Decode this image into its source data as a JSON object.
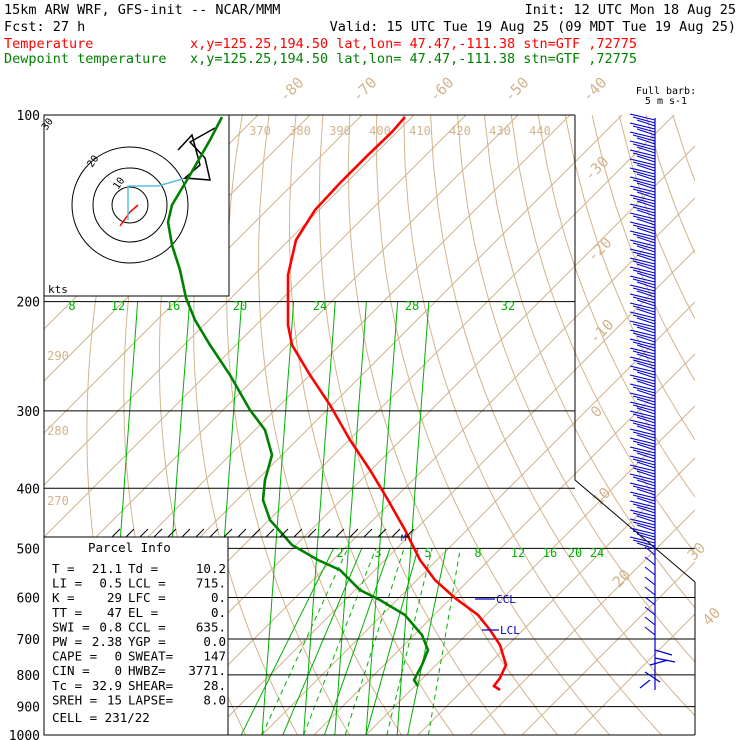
{
  "header": {
    "model": "15km ARW WRF, GFS-init   -- NCAR/MMM",
    "init": "Init: 12 UTC Mon 18 Aug 25",
    "fcst": "Fcst:   27 h",
    "valid": "Valid: 15 UTC Tue 19 Aug 25 (09 MDT Tue 19 Aug 25)",
    "temp_label": "Temperature",
    "temp_loc": "x,y=125.25,194.50   lat,lon= 47.47,-111.38  stn=GTF ,72775",
    "dew_label": "Dewpoint temperature",
    "dew_loc": "x,y=125.25,194.50   lat,lon= 47.47,-111.38  stn=GTF ,72775"
  },
  "colors": {
    "temperature": "#ff0000",
    "dewpoint": "#008000",
    "isotherm": "#d2b48c",
    "mixing_ratio": "#00b000",
    "wind": "#0000cc",
    "hodograph_line": "#5bc0de"
  },
  "barb_legend": {
    "line1": "Full barb:",
    "line2": "5 m s-1"
  },
  "hodograph": {
    "units": "kts",
    "rings": [
      "10",
      "20",
      "30"
    ]
  },
  "parcel_info": {
    "title": "Parcel Info",
    "rows": [
      [
        "T  =",
        "21.1",
        "Td =",
        "10.2"
      ],
      [
        "LI =",
        "0.5",
        "LCL =",
        "715."
      ],
      [
        "K  =",
        "29",
        "LFC =",
        "0."
      ],
      [
        "TT =",
        "47",
        "EL  =",
        "0."
      ],
      [
        "SWI =",
        "0.8",
        "CCL =",
        "635."
      ],
      [
        "PW =",
        "2.38",
        "YGP =",
        "0.0"
      ],
      [
        "CAPE =",
        "0",
        "SWEAT=",
        "147"
      ],
      [
        "CIN =",
        "0",
        "HWBZ=",
        "3771."
      ],
      [
        "Tc =",
        "32.9",
        "SHEAR=",
        "28."
      ],
      [
        "SREH =",
        "15",
        "LAPSE=",
        "8.0"
      ]
    ],
    "cell": "CELL = 231/22"
  },
  "annotations": {
    "ccl": "CCL",
    "lcl": "LCL",
    "m": "M"
  },
  "chart_data": {
    "type": "skew-t log-p sounding",
    "pressure_axis_hPa": [
      100,
      200,
      300,
      400,
      500,
      600,
      700,
      800,
      900,
      1000
    ],
    "pressure_tick_labels": [
      "100",
      "200",
      "300",
      "400",
      "500",
      "600",
      "700",
      "800",
      "900",
      "1000"
    ],
    "isotherm_labels_C": [
      "-80",
      "-70",
      "-60",
      "-50",
      "-40",
      "-30",
      "-20",
      "-10",
      "0",
      "10",
      "20",
      "30",
      "40"
    ],
    "theta_labels_K": [
      "370",
      "380",
      "390",
      "400",
      "410",
      "420",
      "430",
      "440",
      "290",
      "280",
      "270"
    ],
    "mixing_ratio_upper_labels": [
      "8",
      "12",
      "16",
      "20",
      "24",
      "28",
      "32"
    ],
    "mixing_ratio_lower_labels": [
      "2",
      "3",
      "4",
      "5",
      "6",
      "8",
      "12",
      "16",
      "20",
      "24"
    ],
    "series": [
      {
        "name": "Temperature",
        "points": [
          [
            100,
            -42
          ],
          [
            130,
            -47
          ],
          [
            170,
            -55
          ],
          [
            200,
            -58
          ],
          [
            230,
            -59
          ],
          [
            270,
            -54
          ],
          [
            320,
            -47
          ],
          [
            380,
            -37
          ],
          [
            450,
            -28
          ],
          [
            500,
            -21
          ],
          [
            550,
            -14
          ],
          [
            600,
            -7
          ],
          [
            650,
            0
          ],
          [
            700,
            7
          ],
          [
            750,
            12
          ],
          [
            800,
            15
          ],
          [
            850,
            15
          ],
          [
            890,
            14
          ],
          [
            900,
            14
          ]
        ]
      },
      {
        "name": "Dewpoint temperature",
        "points": [
          [
            100,
            -60
          ],
          [
            130,
            -64
          ],
          [
            150,
            -67
          ],
          [
            170,
            -68
          ],
          [
            200,
            -71
          ],
          [
            230,
            -67
          ],
          [
            270,
            -62
          ],
          [
            320,
            -54
          ],
          [
            380,
            -52
          ],
          [
            420,
            -54
          ],
          [
            460,
            -54
          ],
          [
            500,
            -48
          ],
          [
            560,
            -33
          ],
          [
            600,
            -22
          ],
          [
            650,
            -12
          ],
          [
            700,
            -4
          ],
          [
            750,
            0
          ],
          [
            800,
            1
          ],
          [
            850,
            1
          ],
          [
            900,
            1
          ]
        ]
      }
    ]
  }
}
